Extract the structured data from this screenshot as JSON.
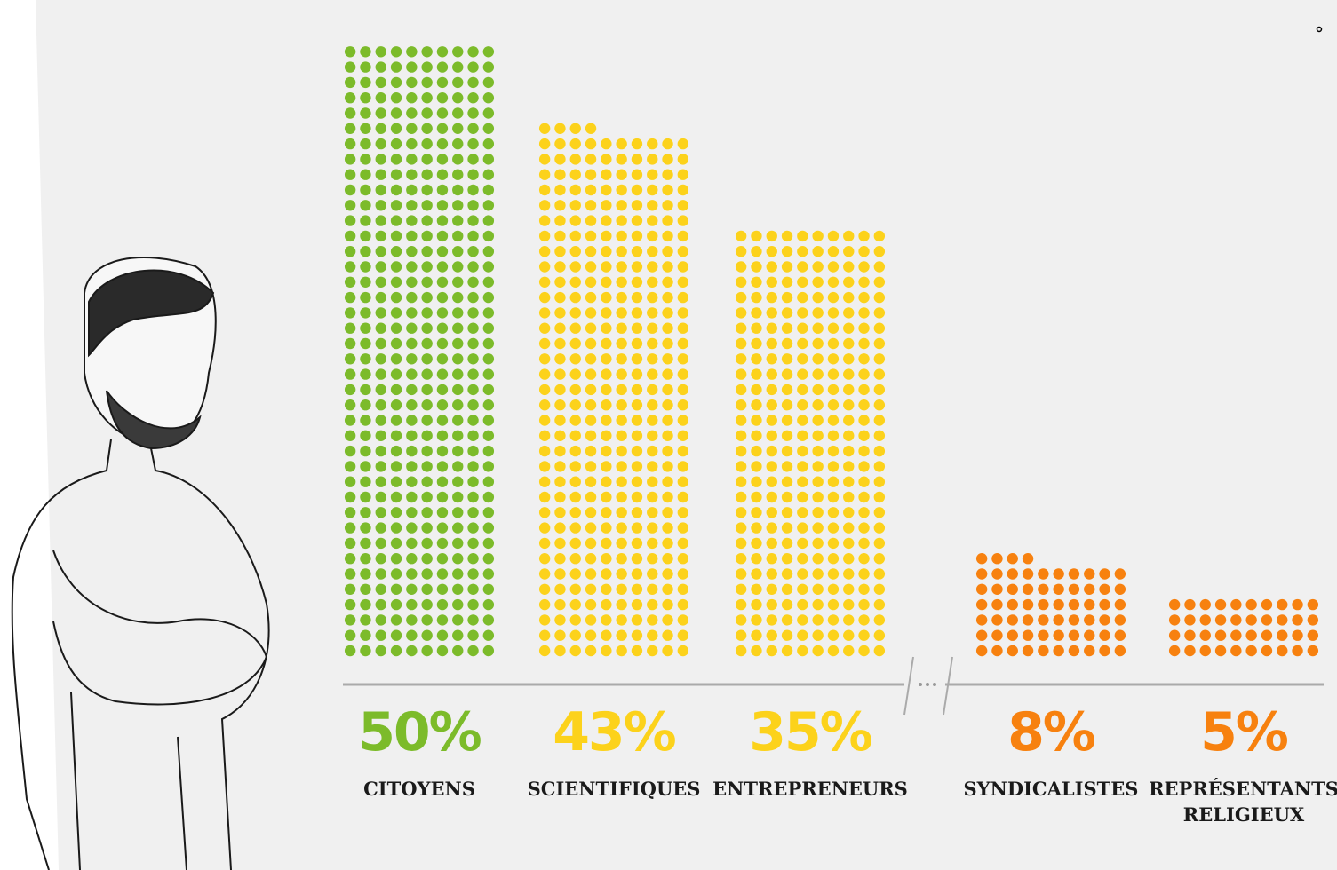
{
  "chart_data": {
    "type": "dotbar",
    "categories": [
      "CITOYENS",
      "SCIENTIFIQUES",
      "ENTREPRENEURS",
      "SYNDICALISTES",
      "REPRÉSENTANTS RELIGIEUX"
    ],
    "values": [
      50,
      43,
      35,
      8,
      5
    ],
    "value_labels": [
      "50%",
      "43%",
      "35%",
      "8%",
      "5%"
    ],
    "colors": [
      "#7cbb2a",
      "#fcd21b",
      "#fcd21b",
      "#f7810f",
      "#f7810f"
    ]
  }
}
